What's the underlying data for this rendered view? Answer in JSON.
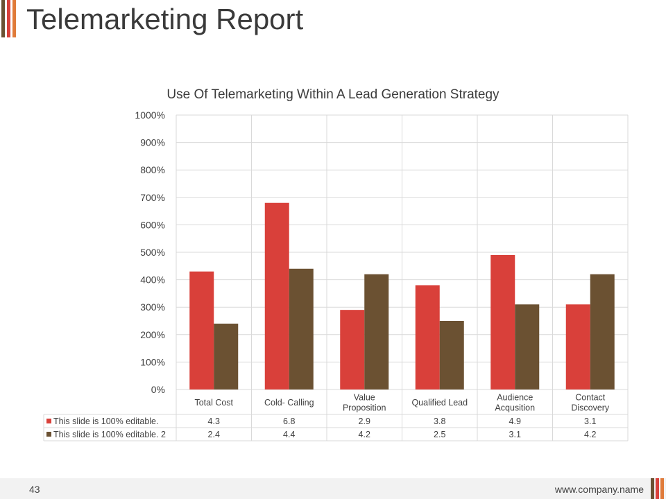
{
  "page": {
    "title": "Telemarketing Report",
    "page_number": "43",
    "website": "www.company.name"
  },
  "colors": {
    "accent_red": "#d9403a",
    "accent_brown": "#6b5132",
    "accent_orange": "#e07b3a",
    "grid": "#d9d9d9",
    "text": "#404040"
  },
  "chart_data": {
    "type": "bar",
    "title": "Use Of Telemarketing Within A Lead Generation Strategy",
    "categories": [
      "Total Cost",
      "Cold- Calling",
      "Value Proposition",
      "Qualified Lead",
      "Audience Acqusition",
      "Contact Discovery"
    ],
    "category_lines": [
      [
        "Total Cost"
      ],
      [
        "Cold- Calling"
      ],
      [
        "Value",
        "Proposition"
      ],
      [
        "Qualified Lead"
      ],
      [
        "Audience",
        "Acqusition"
      ],
      [
        "Contact",
        "Discovery"
      ]
    ],
    "series": [
      {
        "name": "This slide is 100% editable.",
        "values": [
          4.3,
          6.8,
          2.9,
          3.8,
          4.9,
          3.1
        ],
        "color": "#d9403a",
        "labels": [
          "4.3",
          "6.8",
          "2.9",
          "3.8",
          "4.9",
          "3.1"
        ]
      },
      {
        "name": "This slide is 100% editable. 2",
        "values": [
          2.4,
          4.4,
          4.2,
          2.5,
          3.1,
          4.2
        ],
        "color": "#6b5132",
        "labels": [
          "2.4",
          "4.4",
          "4.2",
          "2.5",
          "3.1",
          "4.2"
        ]
      }
    ],
    "ylim": [
      0,
      10
    ],
    "yticks": [
      "0%",
      "100%",
      "200%",
      "300%",
      "400%",
      "500%",
      "600%",
      "700%",
      "800%",
      "900%",
      "1000%"
    ],
    "grid": true,
    "legend": "data-table-below"
  }
}
